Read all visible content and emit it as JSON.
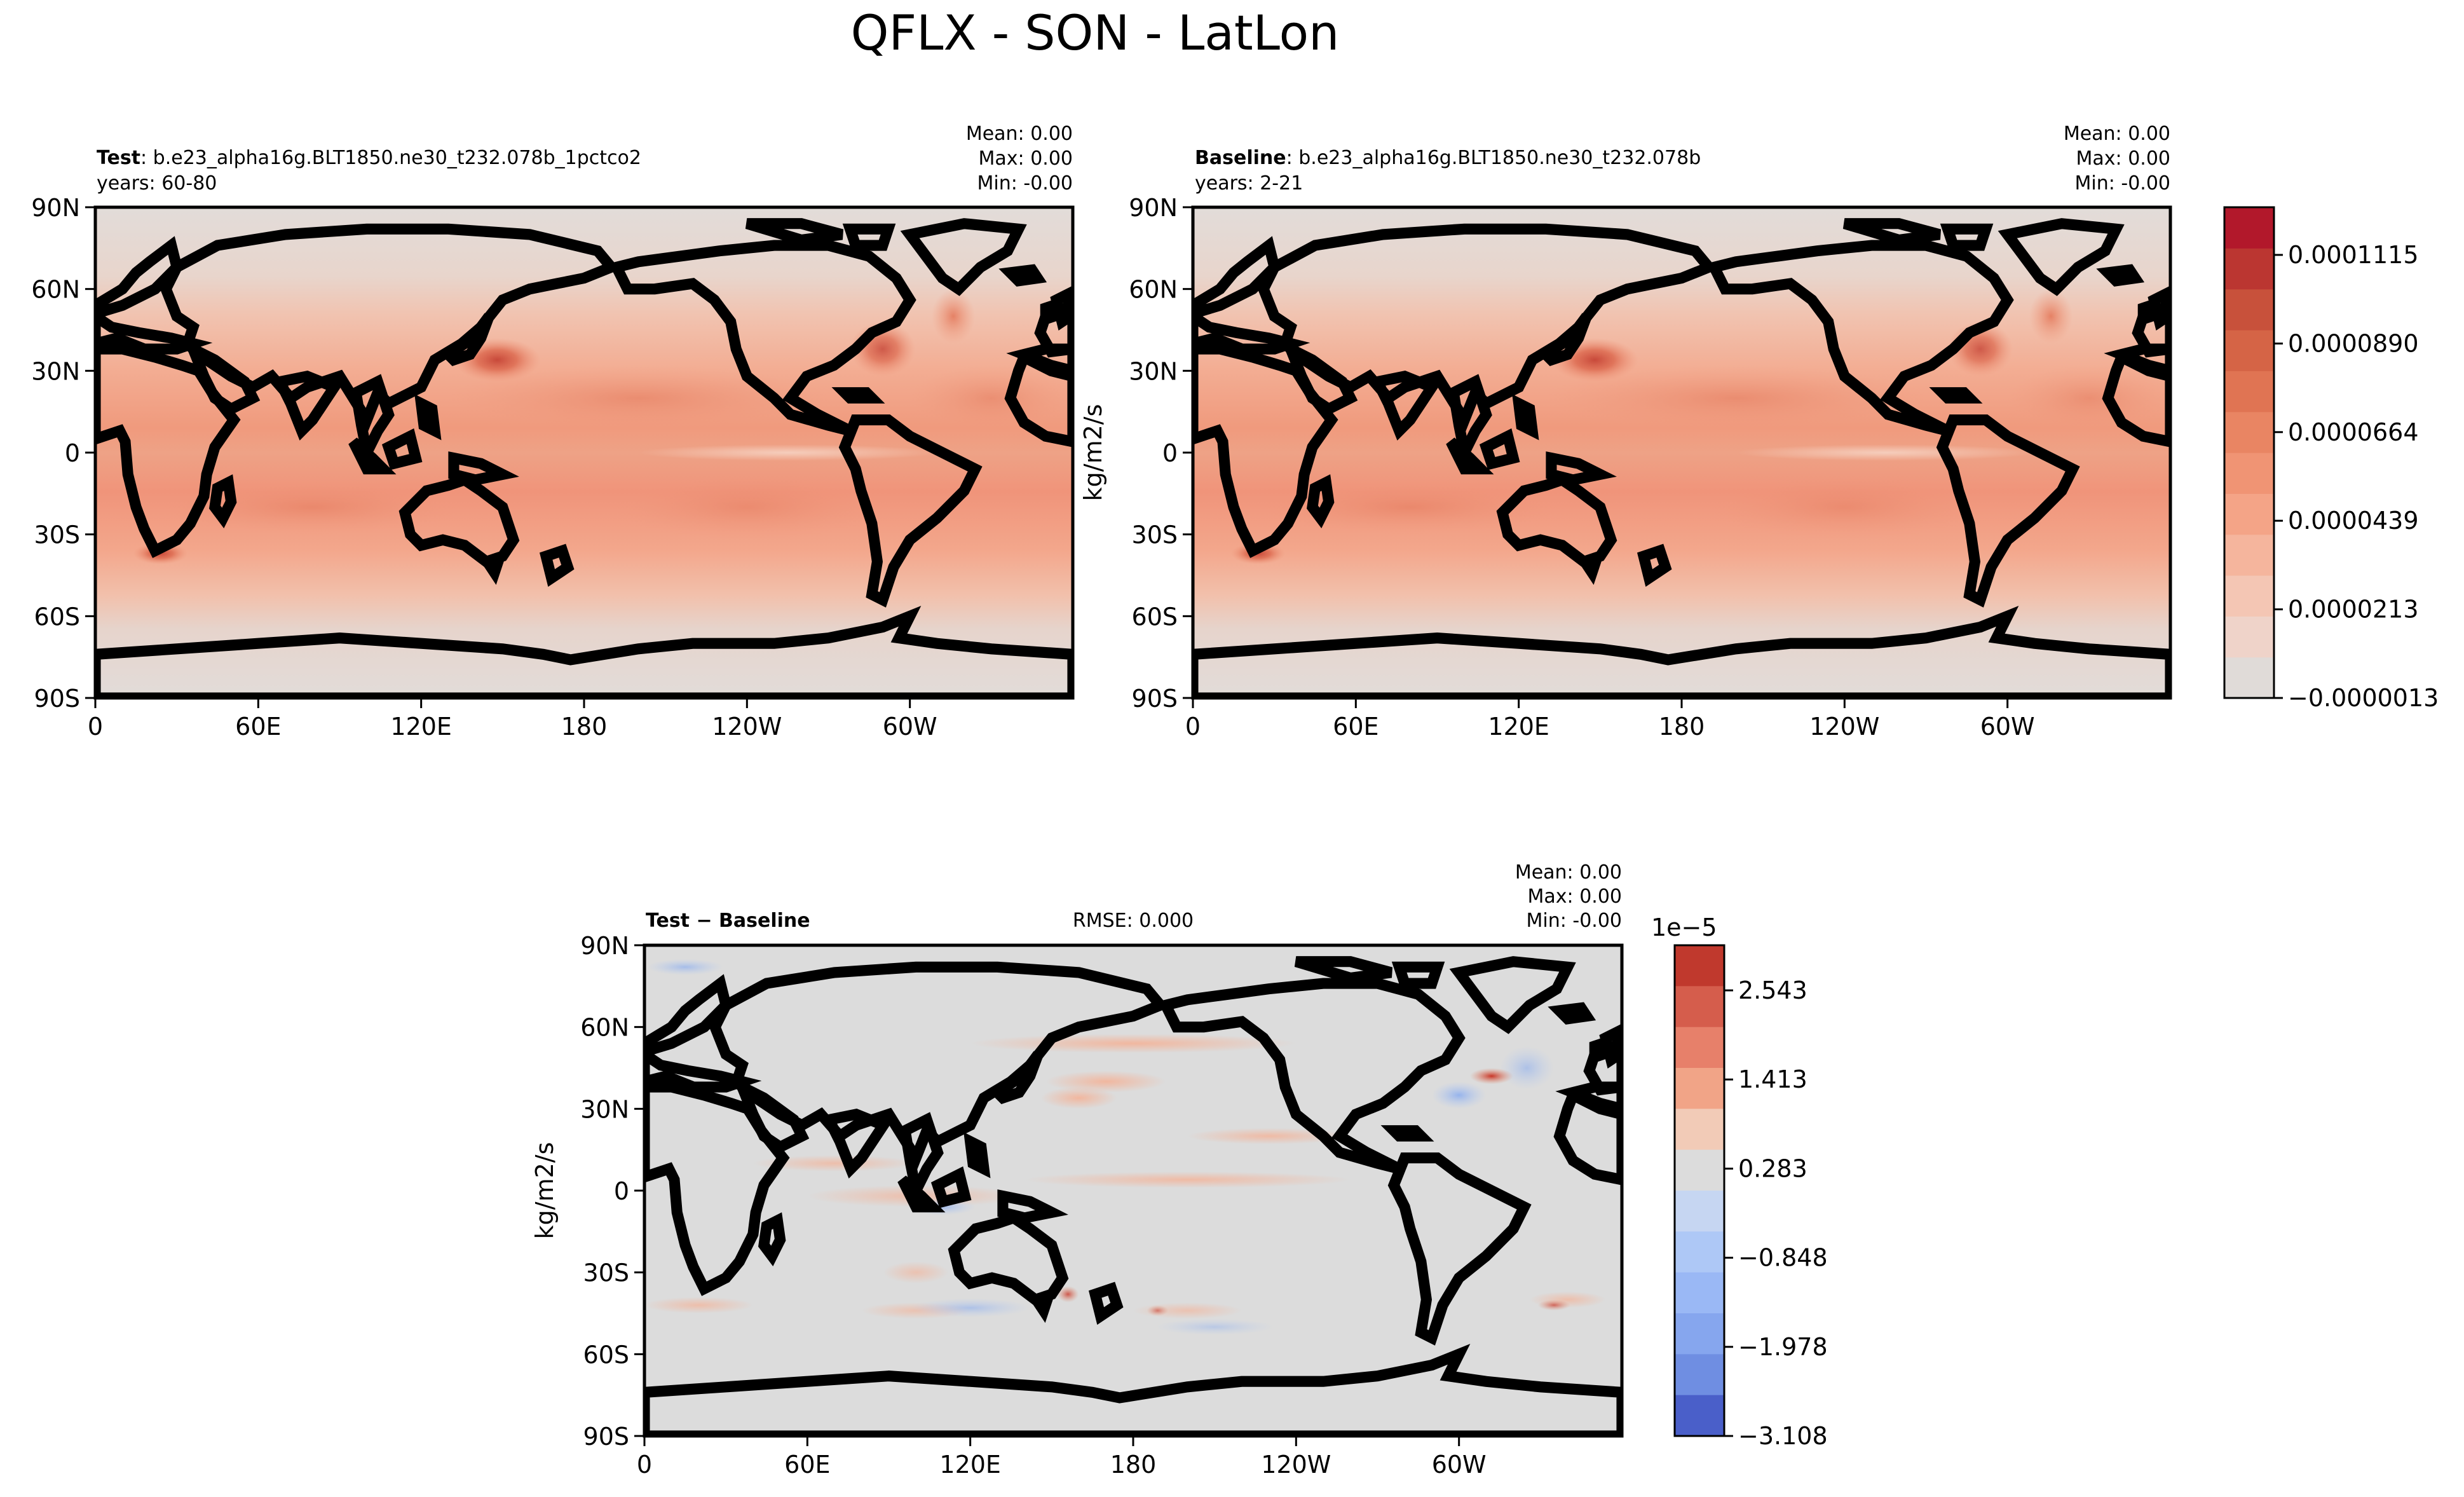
{
  "figure": {
    "title": "QFLX - SON - LatLon"
  },
  "chart_data": [
    {
      "type": "heatmap",
      "panel": "test",
      "label_bold": "Test",
      "label_text": ": b.e23_alpha16g.BLT1850.ne30_t232.078b_1pctco2",
      "years": "years: 60-80",
      "stats": {
        "mean": "Mean:  0.00",
        "max": "Max:  0.00",
        "min": "Min: -0.00"
      },
      "x_ticks": [
        "0",
        "60E",
        "120E",
        "180",
        "120W",
        "60W"
      ],
      "y_ticks": [
        "90N",
        "60N",
        "30N",
        "0",
        "30S",
        "60S",
        "90S"
      ],
      "xlim": [
        0,
        360
      ],
      "ylim": [
        -90,
        90
      ],
      "ylabel": "",
      "colormap": "Reds",
      "value_range": [
        -1.3e-06,
        0.000129
      ],
      "features": [
        {
          "name": "kuroshio",
          "lon": 148,
          "lat": 34,
          "value": 0.00011
        },
        {
          "name": "gulf-stream",
          "lon": 290,
          "lat": 38,
          "value": 9.5e-05
        },
        {
          "name": "agulhas",
          "lon": 25,
          "lat": -37,
          "value": 0.0001
        },
        {
          "name": "north-pacific-subtropics",
          "lon": 200,
          "lat": 20,
          "value": 6e-05
        },
        {
          "name": "south-indian-ocean",
          "lon": 75,
          "lat": -20,
          "value": 6.5e-05
        },
        {
          "name": "south-pacific",
          "lon": 240,
          "lat": -18,
          "value": 6e-05
        },
        {
          "name": "equatorial-cold-tongue",
          "lon": 250,
          "lat": 0,
          "value": 1e-05
        }
      ]
    },
    {
      "type": "heatmap",
      "panel": "baseline",
      "label_bold": "Baseline",
      "label_text": ": b.e23_alpha16g.BLT1850.ne30_t232.078b",
      "years": "years: 2-21",
      "stats": {
        "mean": "Mean:  0.00",
        "max": "Max:  0.00",
        "min": "Min: -0.00"
      },
      "x_ticks": [
        "0",
        "60E",
        "120E",
        "180",
        "120W",
        "60W"
      ],
      "y_ticks": [
        "90N",
        "60N",
        "30N",
        "0",
        "30S",
        "60S",
        "90S"
      ],
      "xlim": [
        0,
        360
      ],
      "ylim": [
        -90,
        90
      ],
      "ylabel": "kg/m2/s",
      "colorbar": {
        "ticks": [
          "0.0001115",
          "0.0000890",
          "0.0000664",
          "0.0000439",
          "0.0000213",
          "−0.0000013"
        ],
        "levels": 12,
        "colors": [
          "#e0dbd8",
          "#efd3c9",
          "#f4c6b4",
          "#f5b59d",
          "#f4a487",
          "#f09474",
          "#e98563",
          "#e07453",
          "#d56446",
          "#c8513b",
          "#bb3631",
          "#b2182b"
        ]
      },
      "value_range": [
        -1.3e-06,
        0.000129
      ],
      "features": [
        {
          "name": "kuroshio",
          "lon": 148,
          "lat": 34,
          "value": 0.00011
        },
        {
          "name": "gulf-stream",
          "lon": 290,
          "lat": 38,
          "value": 9.5e-05
        },
        {
          "name": "agulhas",
          "lon": 25,
          "lat": -37,
          "value": 0.0001
        },
        {
          "name": "north-pacific-subtropics",
          "lon": 200,
          "lat": 20,
          "value": 6e-05
        },
        {
          "name": "south-indian-ocean",
          "lon": 75,
          "lat": -20,
          "value": 6.5e-05
        },
        {
          "name": "south-pacific",
          "lon": 240,
          "lat": -18,
          "value": 6e-05
        },
        {
          "name": "equatorial-cold-tongue",
          "lon": 250,
          "lat": 0,
          "value": 1e-05
        }
      ]
    },
    {
      "type": "heatmap",
      "panel": "difference",
      "label_bold": "Test − Baseline",
      "rmse": "RMSE: 0.000",
      "stats": {
        "mean": "Mean:  0.00",
        "max": "Max:  0.00",
        "min": "Min: -0.00"
      },
      "x_ticks": [
        "0",
        "60E",
        "120E",
        "180",
        "120W",
        "60W"
      ],
      "y_ticks": [
        "90N",
        "60N",
        "30N",
        "0",
        "30S",
        "60S",
        "90S"
      ],
      "xlim": [
        0,
        360
      ],
      "ylim": [
        -90,
        90
      ],
      "ylabel": "kg/m2/s",
      "colorbar": {
        "exponent": "1e−5",
        "ticks": [
          "2.543",
          "1.413",
          "0.283",
          "−0.848",
          "−1.978",
          "−3.108"
        ],
        "levels": 11,
        "colors": [
          "#c9c9d9",
          "#aec8f6",
          "#9ab8f5",
          "#86a6ee",
          "#6f8ee2",
          "#5470d3",
          "#4a5fc9"
        ],
        "colors_pos": [
          "#dcdcdc",
          "#f2cbb7",
          "#f1a487",
          "#e7806a",
          "#d55d4c",
          "#c0392d"
        ]
      },
      "value_range": [
        -3.108e-05,
        3.11e-05
      ],
      "features": [
        {
          "name": "north-atlantic-dipole-positive",
          "lon": 312,
          "lat": 42,
          "value": 2.8e-05
        },
        {
          "name": "north-atlantic-dipole-negative",
          "lon": 300,
          "lat": 38,
          "value": -1.2e-05
        },
        {
          "name": "indonesian-seas-negative",
          "lon": 118,
          "lat": -5,
          "value": -8e-06
        },
        {
          "name": "tasman-positive",
          "lon": 155,
          "lat": -42,
          "value": 1e-05
        },
        {
          "name": "kuroshio-positive",
          "lon": 160,
          "lat": 36,
          "value": 6e-06
        }
      ]
    }
  ]
}
